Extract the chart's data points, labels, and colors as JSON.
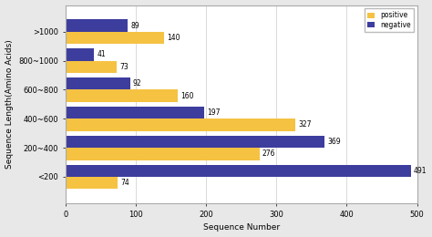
{
  "categories": [
    "<200",
    "200~400",
    "400~600",
    "600~800",
    "800~1000",
    ">1000"
  ],
  "positive": [
    74,
    276,
    327,
    160,
    73,
    140
  ],
  "negative": [
    491,
    369,
    197,
    92,
    41,
    89
  ],
  "positive_color": "#F5C242",
  "negative_color": "#3D3D9E",
  "xlabel": "Sequence Number",
  "ylabel": "Sequence Length(Amino Acids)",
  "xlim": [
    0,
    500
  ],
  "xticks": [
    0,
    100,
    200,
    300,
    400,
    500
  ],
  "bar_height": 0.42,
  "legend_labels": [
    "positive",
    "negative"
  ],
  "background_color": "#ffffff",
  "outer_background": "#e8e8e8",
  "plot_background": "#ffffff",
  "label_fontsize": 6.5,
  "tick_fontsize": 6,
  "annotation_fontsize": 5.5
}
